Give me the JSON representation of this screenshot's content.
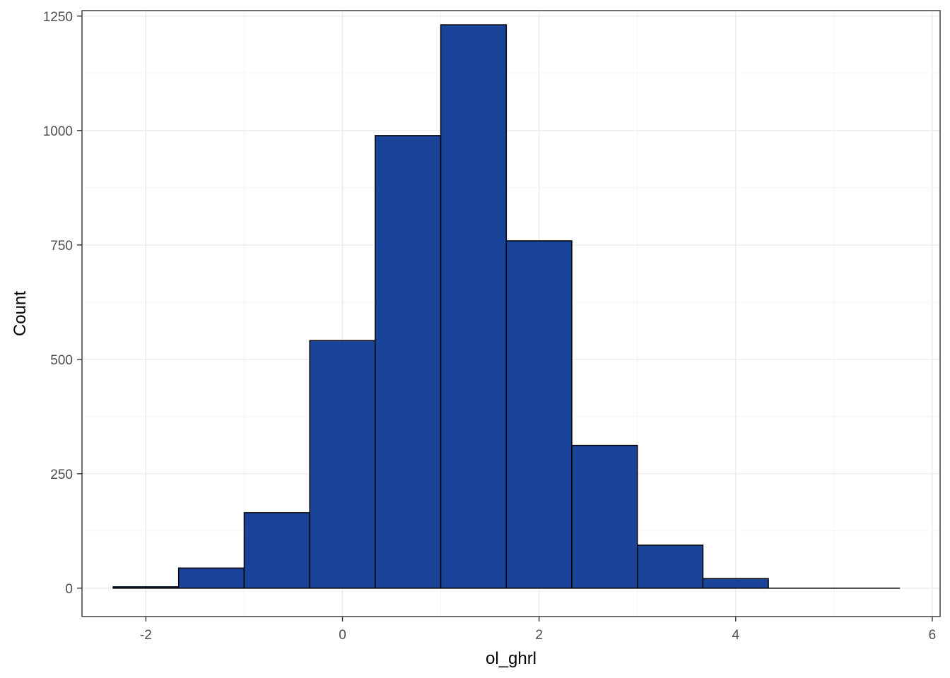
{
  "chart_data": {
    "type": "bar",
    "title": "",
    "xlabel": "ol_ghrl",
    "ylabel": "Count",
    "xlim": [
      -2.65,
      6.08
    ],
    "ylim": [
      -62,
      1262
    ],
    "x_ticks": [
      -2,
      0,
      2,
      4,
      6
    ],
    "y_ticks": [
      0,
      250,
      500,
      750,
      1000,
      1250
    ],
    "x_tick_labels": [
      "-2",
      "0",
      "2",
      "4",
      "6"
    ],
    "y_tick_labels": [
      "0",
      "250",
      "500",
      "750",
      "1000",
      "1250"
    ],
    "grid": true,
    "bar_fill": "#1a449a",
    "bar_edge": "#000000",
    "bins": [
      {
        "x0": -2.333,
        "x1": -1.667,
        "count": 3
      },
      {
        "x0": -1.667,
        "x1": -1.0,
        "count": 44
      },
      {
        "x0": -1.0,
        "x1": -0.333,
        "count": 165
      },
      {
        "x0": -0.333,
        "x1": 0.333,
        "count": 541
      },
      {
        "x0": 0.333,
        "x1": 1.0,
        "count": 989
      },
      {
        "x0": 1.0,
        "x1": 1.667,
        "count": 1231
      },
      {
        "x0": 1.667,
        "x1": 2.333,
        "count": 759
      },
      {
        "x0": 2.333,
        "x1": 3.0,
        "count": 312
      },
      {
        "x0": 3.0,
        "x1": 3.667,
        "count": 94
      },
      {
        "x0": 3.667,
        "x1": 4.333,
        "count": 21
      },
      {
        "x0": 4.333,
        "x1": 5.0,
        "count": 0
      },
      {
        "x0": 5.0,
        "x1": 5.667,
        "count": 0
      }
    ]
  }
}
